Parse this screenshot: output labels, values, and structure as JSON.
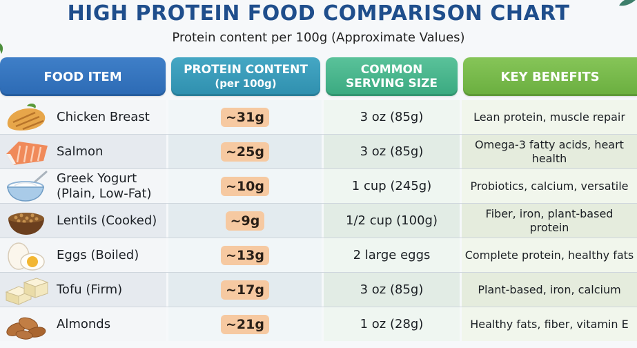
{
  "title": "HIGH PROTEIN FOOD COMPARISON CHART",
  "subtitle": "Protein content per 100g (Approximate Values)",
  "headers": {
    "food": "FOOD ITEM",
    "protein_line1": "PROTEIN CONTENT",
    "protein_line2": "(per 100g)",
    "serving_line1": "COMMON",
    "serving_line2": "SERVING SIZE",
    "benefits": "KEY BENEFITS"
  },
  "rows": [
    {
      "icon": "chicken-breast-icon",
      "name": "Chicken Breast",
      "protein": "~31g",
      "serving": "3 oz (85g)",
      "benefits": "Lean protein, muscle repair"
    },
    {
      "icon": "salmon-icon",
      "name": "Salmon",
      "protein": "~25g",
      "serving": "3 oz (85g)",
      "benefits": "Omega-3 fatty acids, heart health"
    },
    {
      "icon": "yogurt-bowl-icon",
      "name": "Greek Yogurt (Plain, Low-Fat)",
      "protein": "~10g",
      "serving": "1 cup (245g)",
      "benefits": "Probiotics, calcium, versatile"
    },
    {
      "icon": "lentils-bowl-icon",
      "name": "Lentils (Cooked)",
      "protein": "~9g",
      "serving": "1/2 cup (100g)",
      "benefits": "Fiber, iron, plant-based protein"
    },
    {
      "icon": "boiled-egg-icon",
      "name": "Eggs (Boiled)",
      "protein": "~13g",
      "serving": "2 large eggs",
      "benefits": "Complete protein, healthy fats"
    },
    {
      "icon": "tofu-icon",
      "name": "Tofu (Firm)",
      "protein": "~17g",
      "serving": "3 oz (85g)",
      "benefits": "Plant-based, iron, calcium"
    },
    {
      "icon": "almonds-icon",
      "name": "Almonds",
      "protein": "~21g",
      "serving": "1 oz (28g)",
      "benefits": "Healthy fats, fiber, vitamin E"
    }
  ],
  "colors": {
    "title": "#1f4e8c",
    "header_food": "#2c6ab4",
    "header_protein": "#2f8fae",
    "header_serving": "#3aa980",
    "header_benefits": "#6aae3f",
    "protein_badge": "#f6c9a1"
  }
}
